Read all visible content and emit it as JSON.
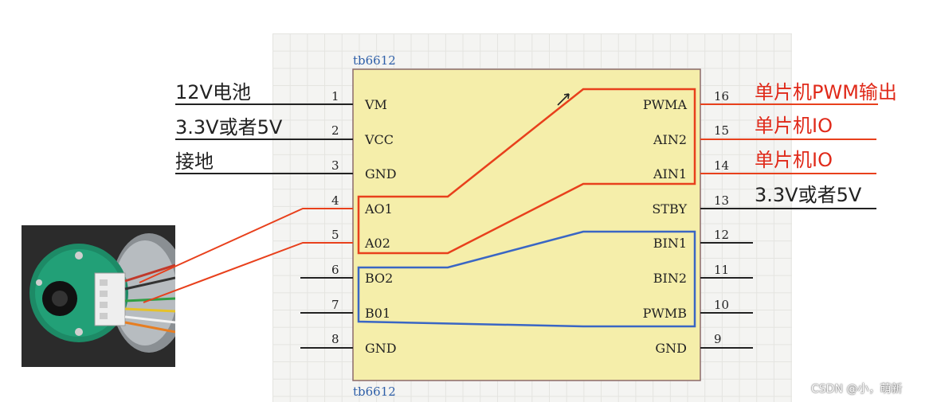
{
  "chip": {
    "label_top": "tb6612",
    "label_bottom": "tb6612",
    "left_pins": [
      {
        "num": "1",
        "name": "VM"
      },
      {
        "num": "2",
        "name": "VCC"
      },
      {
        "num": "3",
        "name": "GND"
      },
      {
        "num": "4",
        "name": "AO1"
      },
      {
        "num": "5",
        "name": "A02"
      },
      {
        "num": "6",
        "name": "BO2"
      },
      {
        "num": "7",
        "name": "B01"
      },
      {
        "num": "8",
        "name": "GND"
      }
    ],
    "right_pins": [
      {
        "num": "16",
        "name": "PWMA"
      },
      {
        "num": "15",
        "name": "AIN2"
      },
      {
        "num": "14",
        "name": "AIN1"
      },
      {
        "num": "13",
        "name": "STBY"
      },
      {
        "num": "12",
        "name": "BIN1"
      },
      {
        "num": "11",
        "name": "BIN2"
      },
      {
        "num": "10",
        "name": "PWMB"
      },
      {
        "num": "9",
        "name": "GND"
      }
    ]
  },
  "annotations": {
    "vm": "12V电池",
    "vcc": "3.3V或者5V",
    "gnd": "接地",
    "pwma": "单片机PWM输出",
    "ain2": "单片机IO",
    "ain1": "单片机IO",
    "stby": "3.3V或者5V"
  },
  "watermark": "CSDN @小，萌新",
  "colors": {
    "chip_fill": "#f5eeaa",
    "chip_border": "#8b6a6a",
    "red_group": "#e8401c",
    "blue_group": "#3a66c4",
    "annotation_red": "#e02a1a",
    "annotation_black": "#222222"
  }
}
